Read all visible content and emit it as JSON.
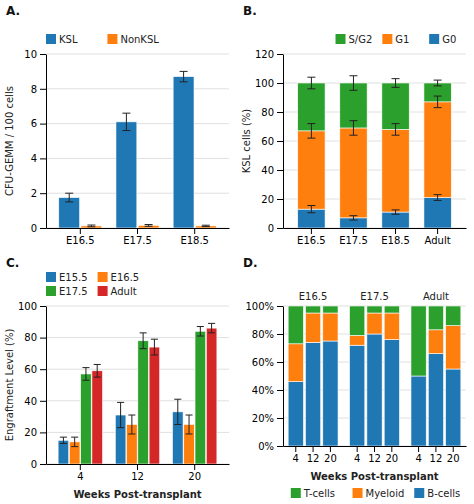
{
  "chart_data": [
    {
      "type": "bar",
      "title": "A.",
      "categories": [
        "E16.5",
        "E17.5",
        "E18.5"
      ],
      "series": [
        {
          "name": "KSL",
          "values": [
            1.75,
            6.1,
            8.7
          ],
          "errors": [
            0.25,
            0.5,
            0.3
          ]
        },
        {
          "name": "NonKSL",
          "values": [
            0.12,
            0.15,
            0.12
          ],
          "errors": [
            0.05,
            0.05,
            0.04
          ]
        }
      ],
      "ylabel": "CFU-GEMM / 100 cells",
      "ylim": [
        0,
        10
      ],
      "yticks": [
        0,
        2,
        4,
        6,
        8,
        10
      ],
      "grid": true,
      "legend": "upper left"
    },
    {
      "type": "bar",
      "title": "B.",
      "stacked": true,
      "categories": [
        "E16.5",
        "E17.5",
        "E18.5",
        "Adult"
      ],
      "series": [
        {
          "name": "G0",
          "values": [
            13,
            7,
            11,
            21
          ],
          "errors": [
            2.5,
            1.5,
            1.5,
            2
          ]
        },
        {
          "name": "G1",
          "values": [
            54,
            62,
            57,
            66
          ],
          "errors": [
            5,
            5,
            4,
            4
          ]
        },
        {
          "name": "S/G2",
          "values": [
            33,
            31,
            32,
            13
          ],
          "errors": [
            4,
            5,
            3,
            2
          ]
        }
      ],
      "ylabel": "KSL cells (%)",
      "ylim": [
        0,
        120
      ],
      "yticks": [
        0,
        20,
        40,
        60,
        80,
        100,
        120
      ],
      "grid": true,
      "legend": "upper right"
    },
    {
      "type": "bar",
      "title": "C.",
      "categories": [
        "4",
        "12",
        "20"
      ],
      "series": [
        {
          "name": "E15.5",
          "values": [
            15,
            31,
            33
          ],
          "errors": [
            2,
            8,
            8
          ]
        },
        {
          "name": "E16.5",
          "values": [
            14,
            25,
            25
          ],
          "errors": [
            3,
            6,
            6
          ]
        },
        {
          "name": "E17.5",
          "values": [
            57,
            78,
            84
          ],
          "errors": [
            4,
            5,
            3
          ]
        },
        {
          "name": "Adult",
          "values": [
            59,
            74,
            86
          ],
          "errors": [
            4,
            5,
            3
          ]
        }
      ],
      "xlabel": "Weeks Post-transplant",
      "ylabel": "Engraftment Level (%)",
      "ylim": [
        0,
        100
      ],
      "yticks": [
        0,
        20,
        40,
        60,
        80,
        100
      ],
      "grid": true,
      "legend": "upper left"
    },
    {
      "type": "bar",
      "title": "D.",
      "stacked": true,
      "groups": [
        "E16.5",
        "E17.5",
        "Adult"
      ],
      "categories": [
        "4",
        "12",
        "20"
      ],
      "series": [
        {
          "name": "B-cells",
          "values": [
            [
              46,
              74,
              75
            ],
            [
              72,
              80,
              76
            ],
            [
              50,
              66,
              55
            ]
          ]
        },
        {
          "name": "Myeloid",
          "values": [
            [
              27,
              21,
              20
            ],
            [
              7,
              15,
              19
            ],
            [
              0,
              17,
              31
            ]
          ]
        },
        {
          "name": "T-cells",
          "values": [
            [
              27,
              5,
              5
            ],
            [
              21,
              5,
              5
            ],
            [
              50,
              17,
              14
            ]
          ]
        }
      ],
      "xlabel": "Weeks Post-transplant",
      "ylim": [
        0,
        100
      ],
      "yticks": [
        {
          "value": 0,
          "label": "0%"
        },
        {
          "value": 20,
          "label": "20%"
        },
        {
          "value": 40,
          "label": "40%"
        },
        {
          "value": 60,
          "label": "60%"
        },
        {
          "value": 80,
          "label": "80%"
        },
        {
          "value": 100,
          "label": "100%"
        }
      ],
      "grid": true,
      "legend": "lower right"
    }
  ]
}
